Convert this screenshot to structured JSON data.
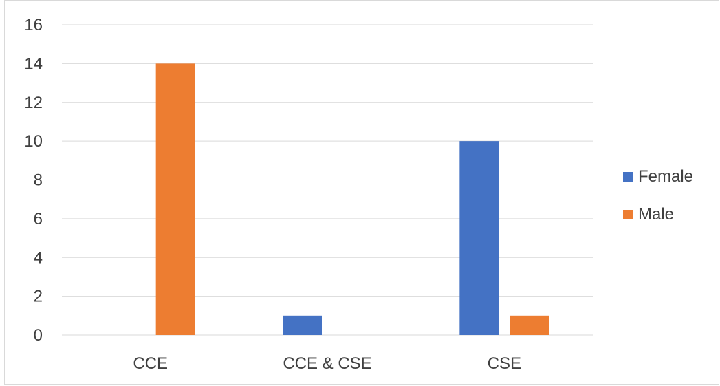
{
  "chart_data": {
    "type": "bar",
    "categories": [
      "CCE",
      "CCE & CSE",
      "CSE"
    ],
    "series": [
      {
        "name": "Female",
        "values": [
          0,
          1,
          10
        ],
        "color": "#4472C4"
      },
      {
        "name": "Male",
        "values": [
          14,
          0,
          1
        ],
        "color": "#ED7D31"
      }
    ],
    "ylim": [
      0,
      16
    ],
    "yticks": [
      0,
      2,
      4,
      6,
      8,
      10,
      12,
      14,
      16
    ],
    "grid": true,
    "legend_position": "right"
  }
}
